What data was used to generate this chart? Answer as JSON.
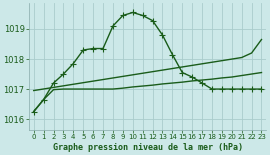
{
  "title": "Graphe pression niveau de la mer (hPa)",
  "background_color": "#cce8e8",
  "grid_color": "#aacccc",
  "line_color": "#1a5c1a",
  "xlim": [
    -0.5,
    23.5
  ],
  "ylim": [
    1015.65,
    1019.85
  ],
  "yticks": [
    1016,
    1017,
    1018,
    1019
  ],
  "xticks": [
    0,
    1,
    2,
    3,
    4,
    5,
    6,
    7,
    8,
    9,
    10,
    11,
    12,
    13,
    14,
    15,
    16,
    17,
    18,
    19,
    20,
    21,
    22,
    23
  ],
  "curve1_x": [
    0,
    1,
    2,
    3,
    4,
    5,
    6,
    7,
    8,
    9,
    10,
    11,
    12,
    13,
    14,
    15,
    16,
    17,
    18,
    19,
    20,
    21,
    22,
    23
  ],
  "curve1_y": [
    1016.25,
    1016.65,
    1017.2,
    1017.5,
    1017.85,
    1018.3,
    1018.35,
    1018.35,
    1019.1,
    1019.45,
    1019.55,
    1019.45,
    1019.28,
    1018.8,
    1018.15,
    1017.55,
    1017.4,
    1017.2,
    1017.0,
    1017.0,
    1017.0,
    1017.0,
    1017.0,
    1017.0
  ],
  "curve2_x": [
    0,
    1,
    2,
    3,
    4,
    5,
    6,
    7,
    8,
    9,
    10,
    11,
    12,
    13,
    14,
    15,
    16,
    17,
    18,
    19,
    20,
    21,
    22,
    23
  ],
  "curve2_y": [
    1016.25,
    1016.65,
    1016.98,
    1017.0,
    1017.0,
    1017.0,
    1017.0,
    1017.0,
    1017.0,
    1017.03,
    1017.07,
    1017.1,
    1017.13,
    1017.17,
    1017.2,
    1017.23,
    1017.27,
    1017.3,
    1017.33,
    1017.37,
    1017.4,
    1017.45,
    1017.5,
    1017.55
  ],
  "curve3_x": [
    0,
    21,
    22,
    23
  ],
  "curve3_y": [
    1016.95,
    1018.05,
    1018.2,
    1018.65
  ],
  "marker": "+",
  "markersize": 4,
  "linewidth": 1.0
}
